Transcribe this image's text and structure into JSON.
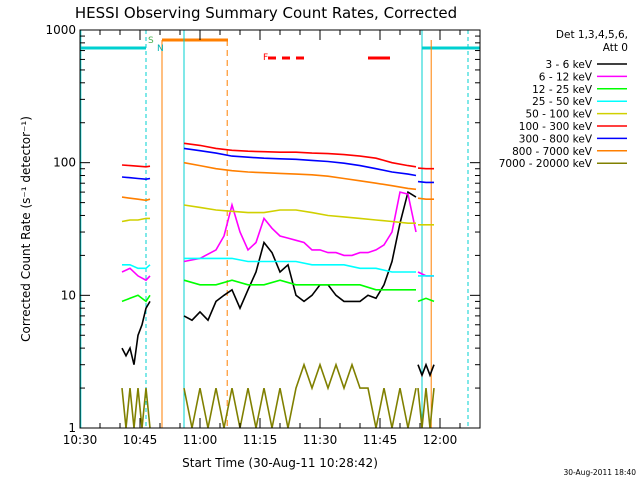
{
  "chart_data": {
    "type": "line",
    "title": "HESSI Observing Summary Count Rates, Corrected",
    "xlabel": "Start Time (30-Aug-11 10:28:42)",
    "ylabel": "Corrected Count Rate (s⁻¹ detector⁻¹)",
    "yscale": "log",
    "ylim": [
      1,
      1000
    ],
    "xlim_minutes_after_10_30": [
      0,
      100
    ],
    "x_tick_labels": [
      "10:30",
      "10:45",
      "11:00",
      "11:15",
      "11:30",
      "11:45",
      "12:00"
    ],
    "y_tick_labels": [
      "1",
      "10",
      "100",
      "1000"
    ],
    "legend_header": [
      "Det 1,3,4,5,6,",
      "Att 0"
    ],
    "legend_placement": "right",
    "timestamp": "30-Aug-2011 18:40",
    "flags": {
      "saa": "S",
      "night": "N",
      "flare": "F"
    },
    "colors": {
      "saa": "#00d0d0",
      "night": "#ff7f00",
      "flare": "#ff0000",
      "saa_label": "#4caf50"
    },
    "series": [
      {
        "name": "3 - 6 keV",
        "color": "#000000",
        "segments": [
          {
            "x": [
              10.5,
              11.5,
              12.5,
              13.5,
              14.5,
              15.5,
              16.5,
              17.5
            ],
            "y": [
              4,
              3.5,
              4,
              3,
              5,
              6,
              8,
              9
            ]
          },
          {
            "x": [
              26,
              28,
              30,
              32,
              34,
              36,
              38,
              40,
              42,
              44,
              46,
              48,
              50,
              52,
              54,
              56,
              58,
              60,
              62,
              64,
              66,
              68,
              70,
              72,
              74,
              76,
              78,
              80,
              82,
              84
            ],
            "y": [
              7,
              6.5,
              7.5,
              6.5,
              9,
              10,
              11,
              8,
              11,
              15,
              25,
              21,
              15,
              17,
              10,
              9,
              10,
              12,
              12,
              10,
              9,
              9,
              9,
              10,
              9.5,
              12,
              18,
              35,
              60,
              55
            ]
          },
          {
            "x": [
              84.5,
              85.5,
              86.5,
              87.5,
              88.5
            ],
            "y": [
              3,
              2.5,
              3,
              2.5,
              3
            ]
          }
        ]
      },
      {
        "name": "6 - 12 keV",
        "color": "#ff00ff",
        "segments": [
          {
            "x": [
              10.5,
              12.5,
              14.5,
              16.5,
              17.5
            ],
            "y": [
              15,
              16,
              14,
              13,
              14
            ]
          },
          {
            "x": [
              26,
              30,
              34,
              36,
              38,
              40,
              42,
              44,
              46,
              48,
              50,
              52,
              54,
              56,
              58,
              60,
              62,
              64,
              66,
              68,
              70,
              72,
              74,
              76,
              78,
              80,
              82,
              84
            ],
            "y": [
              18,
              19,
              22,
              28,
              48,
              30,
              22,
              25,
              38,
              32,
              28,
              27,
              26,
              25,
              22,
              22,
              21,
              21,
              20,
              20,
              21,
              21,
              22,
              24,
              30,
              60,
              58,
              30
            ]
          },
          {
            "x": [
              84.5,
              86.5,
              88.5
            ],
            "y": [
              15,
              14,
              14
            ]
          }
        ]
      },
      {
        "name": "12 - 25 keV",
        "color": "#00ff00",
        "segments": [
          {
            "x": [
              10.5,
              12.5,
              14.5,
              16.5,
              17.5
            ],
            "y": [
              9,
              9.5,
              10,
              9,
              10
            ]
          },
          {
            "x": [
              26,
              30,
              34,
              38,
              42,
              46,
              50,
              54,
              58,
              62,
              66,
              70,
              74,
              78,
              82,
              84
            ],
            "y": [
              13,
              12,
              12,
              13,
              12,
              12,
              13,
              12,
              12,
              12,
              12,
              12,
              11,
              11,
              11,
              11
            ]
          },
          {
            "x": [
              84.5,
              86.5,
              88.5
            ],
            "y": [
              9,
              9.5,
              9
            ]
          }
        ]
      },
      {
        "name": "25 - 50 keV",
        "color": "#00ffff",
        "segments": [
          {
            "x": [
              10.5,
              12.5,
              14.5,
              16.5,
              17.5
            ],
            "y": [
              17,
              17,
              16,
              16,
              17
            ]
          },
          {
            "x": [
              26,
              30,
              34,
              38,
              42,
              46,
              50,
              54,
              58,
              62,
              66,
              70,
              74,
              78,
              82,
              84
            ],
            "y": [
              19,
              19,
              19,
              19,
              18,
              18,
              18,
              18,
              17,
              17,
              17,
              16,
              16,
              15,
              15,
              15
            ]
          },
          {
            "x": [
              84.5,
              86.5,
              88.5
            ],
            "y": [
              14,
              14,
              14
            ]
          }
        ]
      },
      {
        "name": "50 - 100 keV",
        "color": "#d0d000",
        "segments": [
          {
            "x": [
              10.5,
              12.5,
              14.5,
              16.5,
              17.5
            ],
            "y": [
              36,
              37,
              37,
              38,
              38
            ]
          },
          {
            "x": [
              26,
              30,
              34,
              38,
              42,
              46,
              50,
              54,
              58,
              62,
              66,
              70,
              74,
              78,
              82,
              84
            ],
            "y": [
              48,
              46,
              44,
              43,
              42,
              42,
              44,
              44,
              42,
              40,
              39,
              38,
              37,
              36,
              35,
              35
            ]
          },
          {
            "x": [
              84.5,
              86.5,
              88.5
            ],
            "y": [
              34,
              34,
              34
            ]
          }
        ]
      },
      {
        "name": "100 - 300 keV",
        "color": "#ff0000",
        "segments": [
          {
            "x": [
              10.5,
              12.5,
              14.5,
              16.5,
              17.5
            ],
            "y": [
              96,
              95,
              94,
              93,
              94
            ]
          },
          {
            "x": [
              26,
              30,
              34,
              38,
              42,
              46,
              50,
              54,
              58,
              62,
              66,
              70,
              74,
              78,
              82,
              84
            ],
            "y": [
              140,
              135,
              128,
              124,
              122,
              121,
              120,
              120,
              118,
              117,
              115,
              112,
              108,
              100,
              95,
              93
            ]
          },
          {
            "x": [
              84.5,
              86.5,
              88.5
            ],
            "y": [
              91,
              90,
              90
            ]
          }
        ]
      },
      {
        "name": "300 - 800 keV",
        "color": "#0000ff",
        "segments": [
          {
            "x": [
              10.5,
              12.5,
              14.5,
              16.5,
              17.5
            ],
            "y": [
              78,
              77,
              76,
              75,
              76
            ]
          },
          {
            "x": [
              26,
              30,
              34,
              38,
              42,
              46,
              50,
              54,
              58,
              62,
              66,
              70,
              74,
              78,
              82,
              84
            ],
            "y": [
              128,
              123,
              118,
              112,
              110,
              108,
              107,
              106,
              104,
              102,
              99,
              95,
              90,
              85,
              82,
              80
            ]
          },
          {
            "x": [
              84.5,
              86.5,
              88.5
            ],
            "y": [
              72,
              71,
              71
            ]
          }
        ]
      },
      {
        "name": "800 - 7000 keV",
        "color": "#ff7f00",
        "segments": [
          {
            "x": [
              10.5,
              12.5,
              14.5,
              16.5,
              17.5
            ],
            "y": [
              55,
              54,
              53,
              52,
              53
            ]
          },
          {
            "x": [
              26,
              30,
              34,
              38,
              42,
              46,
              50,
              54,
              58,
              62,
              66,
              70,
              74,
              78,
              82,
              84
            ],
            "y": [
              100,
              95,
              90,
              87,
              85,
              84,
              83,
              82,
              81,
              79,
              76,
              73,
              70,
              67,
              64,
              63
            ]
          },
          {
            "x": [
              84.5,
              86.5,
              88.5
            ],
            "y": [
              54,
              53,
              53
            ]
          }
        ]
      },
      {
        "name": "7000 - 20000 keV",
        "color": "#808000",
        "segments": [
          {
            "x": [
              10.5,
              11.5,
              12.5,
              13.5,
              14.5,
              15.5,
              16.5,
              17.5
            ],
            "y": [
              2,
              1,
              2,
              1,
              2,
              1,
              2,
              1
            ]
          },
          {
            "x": [
              26,
              28,
              30,
              32,
              34,
              36,
              38,
              40,
              42,
              44,
              46,
              48,
              50,
              52,
              54,
              56,
              58,
              60,
              62,
              64,
              66,
              68,
              70,
              72,
              74,
              76,
              78,
              80,
              82,
              84
            ],
            "y": [
              2,
              1,
              2,
              1,
              2,
              1,
              2,
              1,
              2,
              1,
              2,
              1,
              2,
              1,
              2,
              3,
              2,
              3,
              2,
              3,
              2,
              3,
              2,
              2,
              1,
              2,
              1,
              2,
              1,
              2
            ]
          },
          {
            "x": [
              84.5,
              85.5,
              86.5,
              87.5,
              88.5
            ],
            "y": [
              2,
              1,
              2,
              1,
              2
            ]
          }
        ]
      }
    ]
  }
}
